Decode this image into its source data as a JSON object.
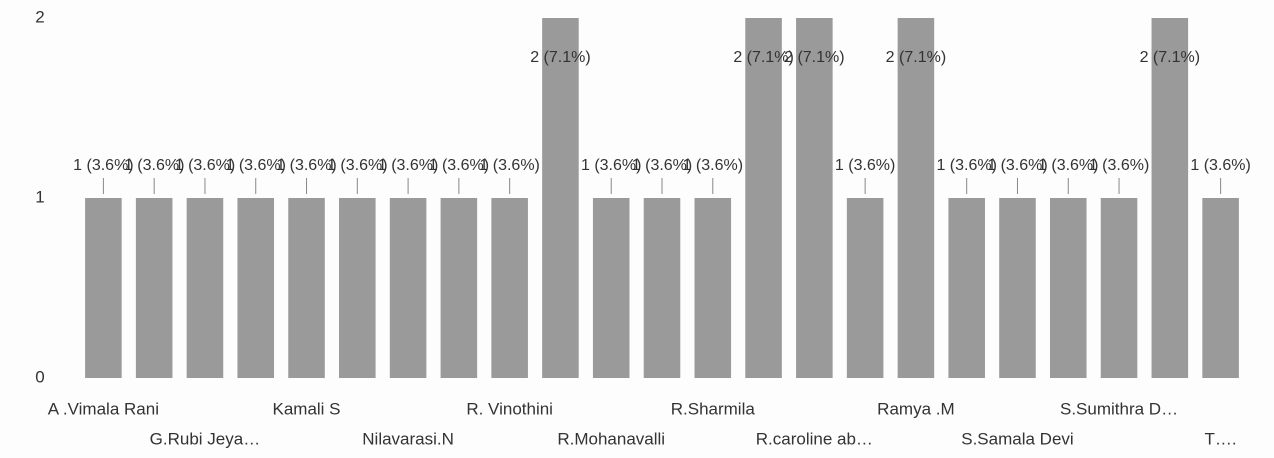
{
  "chart_data": {
    "type": "bar",
    "categories": [
      "A .Vimala Rani",
      null,
      "G.Rubi Jeya…",
      null,
      "Kamali S",
      null,
      "Nilavarasi.N",
      null,
      "R. Vinothini",
      null,
      "R.Mohanavalli",
      null,
      "R.Sharmila",
      null,
      "R.caroline ab…",
      null,
      "Ramya .M",
      null,
      "S.Samala Devi",
      null,
      "S.Sumithra D…",
      null,
      "T…."
    ],
    "values": [
      1,
      1,
      1,
      1,
      1,
      1,
      1,
      1,
      1,
      2,
      1,
      1,
      1,
      2,
      2,
      1,
      2,
      1,
      1,
      1,
      1,
      2,
      1
    ],
    "value_labels": [
      "1 (3.6%)",
      "1 (3.6%)",
      "1 (3.6%)",
      "1 (3.6%)",
      "1 (3.6%)",
      "1 (3.6%)",
      "1 (3.6%)",
      "1 (3.6%)",
      "1 (3.6%)",
      "2 (7.1%)",
      "1 (3.6%)",
      "1 (3.6%)",
      "1 (3.6%)",
      "2 (7.1%)",
      "2 (7.1%)",
      "1 (3.6%)",
      "2 (7.1%)",
      "1 (3.6%)",
      "1 (3.6%)",
      "1 (3.6%)",
      "1 (3.6%)",
      "2 (7.1%)",
      "1 (3.6%)"
    ],
    "color": "#9a9a9a",
    "ylim": [
      0,
      2
    ],
    "yticks": [
      0,
      1,
      2
    ],
    "grid": false
  }
}
